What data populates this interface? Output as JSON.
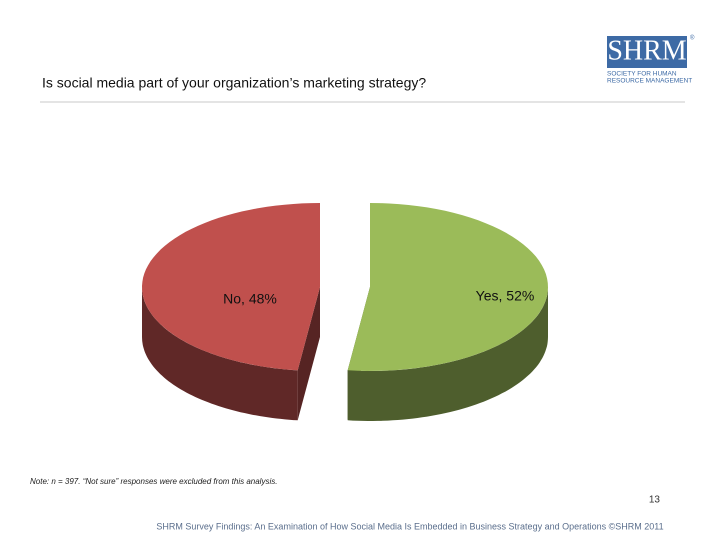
{
  "chart_data": {
    "type": "pie3d",
    "title": "Is social media part of your organization’s marketing strategy?",
    "categories": [
      "Yes",
      "No"
    ],
    "values": [
      52,
      48
    ],
    "value_labels": [
      "Yes, 52%",
      "No, 48%"
    ],
    "colors": [
      "#9bbb59",
      "#c0504d"
    ]
  },
  "note": "Note: n = 397. “Not sure” responses were excluded from this analysis.",
  "page_number": "13",
  "footer": "SHRM Survey Findings: An Examination of How Social Media Is Embedded in Business Strategy and Operations ©SHRM 2011",
  "logo": {
    "name": "SHRM",
    "mark": "®",
    "tagline_1": "SOCIETY FOR HUMAN",
    "tagline_2": "RESOURCE MANAGEMENT"
  }
}
